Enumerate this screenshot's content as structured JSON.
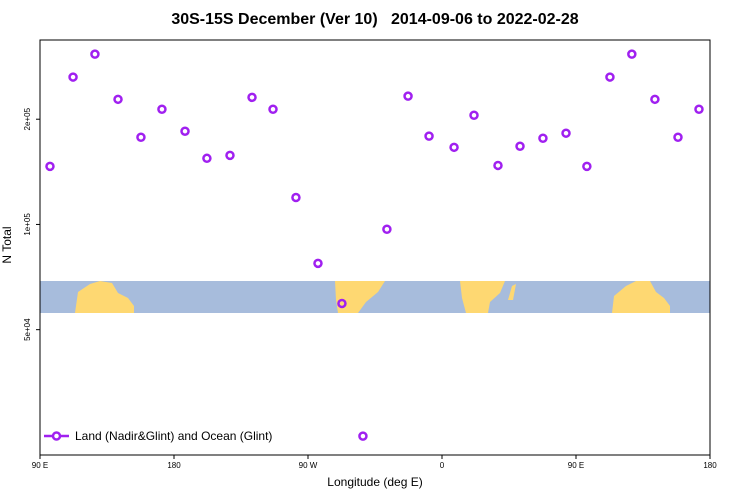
{
  "chart_data": {
    "type": "scatter",
    "title": "30S-15S December (Ver 10)   2014-09-06 to 2022-02-28",
    "xlabel": "Longitude (deg E)",
    "ylabel": "N Total",
    "x": [
      96.7,
      112.2,
      126.9,
      142.4,
      157.8,
      171.9,
      187.4,
      202.1,
      217.6,
      232.4,
      246.5,
      261.9,
      276.7,
      292.8,
      306.9,
      323.0,
      337.2,
      351.3,
      368.1,
      381.5,
      397.6,
      412.4,
      427.8,
      443.3,
      457.3,
      472.8,
      487.5,
      503.0,
      518.5,
      532.6
    ],
    "series": [
      {
        "name": "Land (Nadir&Glint) and Ocean (Glint)",
        "color": "#a020f0",
        "values": [
          146600,
          264000,
          307000,
          228000,
          177600,
          213600,
          184800,
          154600,
          157600,
          231000,
          213600,
          119400,
          77400,
          59400,
          24800,
          96900,
          232800,
          178900,
          166200,
          205300,
          147500,
          167400,
          176400,
          182400,
          146600,
          264000,
          307000,
          228000,
          177600,
          213600
        ]
      }
    ],
    "xlim": [
      90,
      540
    ],
    "xticks": [
      {
        "value": 90,
        "label": "90 E"
      },
      180,
      {
        "value": 270,
        "label": "90 W"
      },
      {
        "value": 360,
        "label": "0"
      },
      {
        "value": 450,
        "label": "90 E"
      },
      {
        "value": 540,
        "label": "180"
      }
    ],
    "ylim": [
      21900,
      337000
    ],
    "yticks": [
      {
        "value": 50000,
        "label": "5e+04"
      },
      {
        "value": 100000,
        "label": "1e+05"
      },
      {
        "value": 200000,
        "label": "2e+05"
      }
    ],
    "log_y": true,
    "grid": false,
    "legend": "lower left"
  }
}
